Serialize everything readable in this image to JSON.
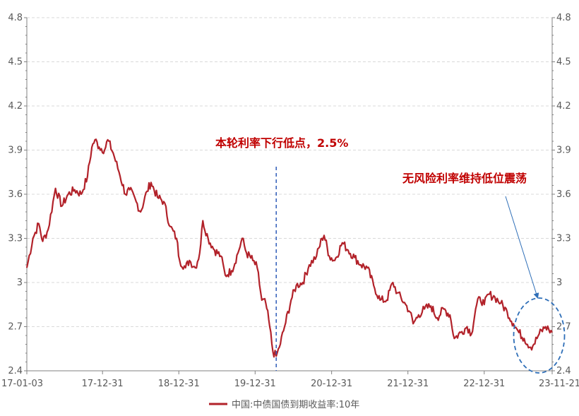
{
  "chart_data": {
    "type": "line",
    "title": "",
    "xlabel": "",
    "ylabel": "",
    "ylim": [
      2.4,
      4.8
    ],
    "y_ticks": [
      "4.8",
      "4.5",
      "4.2",
      "3.9",
      "3.6",
      "3.3",
      "3",
      "2.7",
      "2.4"
    ],
    "y_tick_values": [
      4.8,
      4.5,
      4.2,
      3.9,
      3.6,
      3.3,
      3.0,
      2.7,
      2.4
    ],
    "x_tick_labels": [
      "17-01-03",
      "17-12-31",
      "18-12-31",
      "19-12-31",
      "20-12-31",
      "21-12-31",
      "22-12-31",
      "23-11-21"
    ],
    "x_tick_dates": [
      "2017-01-03",
      "2017-12-31",
      "2018-12-31",
      "2019-12-31",
      "2020-12-31",
      "2021-12-31",
      "2022-12-31",
      "2023-11-21"
    ],
    "grid": "horizontal dashed",
    "legend_position": "bottom-center",
    "series": [
      {
        "name": "中国:中债国债到期收益率:10年",
        "color": "#b2222a",
        "points": [
          [
            "2017-01-03",
            3.1
          ],
          [
            "2017-02-01",
            3.3
          ],
          [
            "2017-03-01",
            3.4
          ],
          [
            "2017-03-20",
            3.28
          ],
          [
            "2017-04-15",
            3.36
          ],
          [
            "2017-05-20",
            3.64
          ],
          [
            "2017-06-20",
            3.52
          ],
          [
            "2017-07-20",
            3.6
          ],
          [
            "2017-08-20",
            3.63
          ],
          [
            "2017-09-20",
            3.6
          ],
          [
            "2017-10-20",
            3.72
          ],
          [
            "2017-11-10",
            3.92
          ],
          [
            "2017-11-25",
            3.97
          ],
          [
            "2017-12-15",
            3.92
          ],
          [
            "2018-01-10",
            3.9
          ],
          [
            "2018-01-25",
            3.97
          ],
          [
            "2018-02-20",
            3.88
          ],
          [
            "2018-03-20",
            3.75
          ],
          [
            "2018-04-20",
            3.6
          ],
          [
            "2018-05-10",
            3.63
          ],
          [
            "2018-06-10",
            3.55
          ],
          [
            "2018-07-01",
            3.48
          ],
          [
            "2018-08-01",
            3.62
          ],
          [
            "2018-08-20",
            3.68
          ],
          [
            "2018-09-20",
            3.58
          ],
          [
            "2018-10-20",
            3.55
          ],
          [
            "2018-11-20",
            3.38
          ],
          [
            "2018-12-20",
            3.3
          ],
          [
            "2019-01-04",
            3.15
          ],
          [
            "2019-02-01",
            3.1
          ],
          [
            "2019-02-20",
            3.15
          ],
          [
            "2019-03-20",
            3.1
          ],
          [
            "2019-04-10",
            3.2
          ],
          [
            "2019-04-25",
            3.42
          ],
          [
            "2019-05-20",
            3.3
          ],
          [
            "2019-06-20",
            3.22
          ],
          [
            "2019-07-20",
            3.18
          ],
          [
            "2019-08-10",
            3.05
          ],
          [
            "2019-09-10",
            3.08
          ],
          [
            "2019-10-10",
            3.2
          ],
          [
            "2019-10-30",
            3.3
          ],
          [
            "2019-11-20",
            3.2
          ],
          [
            "2019-12-20",
            3.15
          ],
          [
            "2020-01-10",
            3.1
          ],
          [
            "2020-02-01",
            2.88
          ],
          [
            "2020-02-20",
            2.86
          ],
          [
            "2020-03-10",
            2.7
          ],
          [
            "2020-03-25",
            2.53
          ],
          [
            "2020-04-10",
            2.5
          ],
          [
            "2020-04-25",
            2.56
          ],
          [
            "2020-05-20",
            2.7
          ],
          [
            "2020-06-20",
            2.88
          ],
          [
            "2020-07-15",
            2.98
          ],
          [
            "2020-08-15",
            3.0
          ],
          [
            "2020-09-15",
            3.12
          ],
          [
            "2020-10-20",
            3.18
          ],
          [
            "2020-11-15",
            3.3
          ],
          [
            "2020-11-25",
            3.32
          ],
          [
            "2020-12-20",
            3.18
          ],
          [
            "2021-01-15",
            3.15
          ],
          [
            "2021-02-20",
            3.27
          ],
          [
            "2021-03-20",
            3.22
          ],
          [
            "2021-04-20",
            3.17
          ],
          [
            "2021-05-20",
            3.12
          ],
          [
            "2021-06-20",
            3.1
          ],
          [
            "2021-07-20",
            2.98
          ],
          [
            "2021-08-20",
            2.88
          ],
          [
            "2021-09-20",
            2.88
          ],
          [
            "2021-10-20",
            3.0
          ],
          [
            "2021-11-10",
            2.93
          ],
          [
            "2021-12-20",
            2.85
          ],
          [
            "2022-01-10",
            2.8
          ],
          [
            "2022-01-25",
            2.72
          ],
          [
            "2022-02-20",
            2.78
          ],
          [
            "2022-03-20",
            2.82
          ],
          [
            "2022-04-20",
            2.84
          ],
          [
            "2022-05-20",
            2.76
          ],
          [
            "2022-06-20",
            2.82
          ],
          [
            "2022-07-20",
            2.78
          ],
          [
            "2022-08-10",
            2.62
          ],
          [
            "2022-09-10",
            2.66
          ],
          [
            "2022-10-10",
            2.7
          ],
          [
            "2022-10-31",
            2.65
          ],
          [
            "2022-11-20",
            2.82
          ],
          [
            "2022-12-10",
            2.9
          ],
          [
            "2022-12-31",
            2.85
          ],
          [
            "2023-01-20",
            2.92
          ],
          [
            "2023-02-20",
            2.9
          ],
          [
            "2023-03-20",
            2.86
          ],
          [
            "2023-04-20",
            2.8
          ],
          [
            "2023-05-20",
            2.72
          ],
          [
            "2023-06-15",
            2.66
          ],
          [
            "2023-07-10",
            2.62
          ],
          [
            "2023-08-10",
            2.56
          ],
          [
            "2023-08-25",
            2.58
          ],
          [
            "2023-09-20",
            2.65
          ],
          [
            "2023-10-20",
            2.7
          ],
          [
            "2023-11-05",
            2.68
          ],
          [
            "2023-11-21",
            2.66
          ]
        ]
      }
    ],
    "annotations": [
      {
        "text": "本轮利率下行低点，2.5%",
        "x": "2020-04-10",
        "style": "vertical-dashed-line"
      },
      {
        "text": "无风险利率维持低位震荡",
        "target_x": "2023-08-10",
        "target_y": 2.6,
        "style": "arrow-ellipse"
      }
    ]
  }
}
